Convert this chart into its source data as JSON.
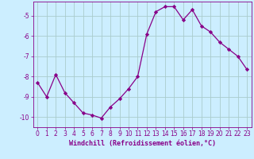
{
  "x": [
    0,
    1,
    2,
    3,
    4,
    5,
    6,
    7,
    8,
    9,
    10,
    11,
    12,
    13,
    14,
    15,
    16,
    17,
    18,
    19,
    20,
    21,
    22,
    23
  ],
  "y": [
    -8.3,
    -9.0,
    -7.9,
    -8.8,
    -9.3,
    -9.8,
    -9.9,
    -10.05,
    -9.5,
    -9.1,
    -8.6,
    -8.0,
    -5.9,
    -4.8,
    -4.55,
    -4.55,
    -5.2,
    -4.7,
    -5.5,
    -5.8,
    -6.3,
    -6.65,
    -7.0,
    -7.65
  ],
  "line_color": "#880088",
  "marker": "D",
  "markersize": 2.2,
  "linewidth": 0.9,
  "bg_color": "#cceeff",
  "grid_color": "#aacccc",
  "xlabel": "Windchill (Refroidissement éolien,°C)",
  "xlabel_color": "#880088",
  "xlabel_fontsize": 6.0,
  "tick_color": "#880088",
  "ylabel_ticks": [
    -10,
    -9,
    -8,
    -7,
    -6,
    -5
  ],
  "ylim": [
    -10.5,
    -4.3
  ],
  "xlim": [
    -0.5,
    23.5
  ],
  "tick_fontsize": 5.5
}
